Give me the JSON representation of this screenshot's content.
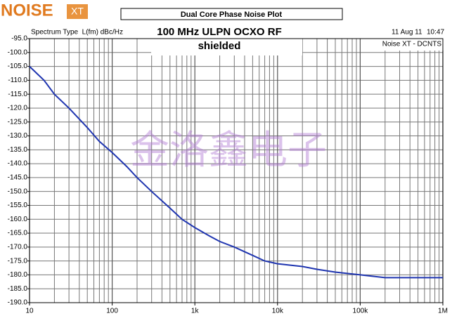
{
  "chart_data": {
    "type": "line",
    "logo": "NOISE",
    "logo_badge": "XT",
    "title": "Dual Core Phase Noise Plot",
    "y_label": "Spectrum Type  L(fm) dBc/Hz",
    "annotation": [
      "100 MHz ULPN OCXO RF",
      "shielded"
    ],
    "date": "11 Aug 11",
    "time": "10:47",
    "instrument": "Noise XT - DCNTS",
    "watermark": "金洛鑫电子",
    "x_scale": "log",
    "grid": true,
    "xlim": [
      10,
      1000000
    ],
    "xticks": [
      10,
      100,
      {
        "value": 1000,
        "label": "1k"
      },
      {
        "value": 10000,
        "label": "10k"
      },
      {
        "value": 100000,
        "label": "100k"
      },
      {
        "value": 1000000,
        "label": "1M"
      }
    ],
    "xminorticks": [
      20,
      30,
      40,
      50,
      60,
      70,
      80,
      90,
      200,
      300,
      400,
      500,
      600,
      700,
      800,
      900,
      2000,
      3000,
      4000,
      5000,
      6000,
      7000,
      8000,
      9000,
      20000,
      30000,
      40000,
      50000,
      60000,
      70000,
      80000,
      90000,
      200000,
      300000,
      400000,
      500000,
      600000,
      700000,
      800000,
      900000
    ],
    "ylim": [
      -190,
      -95
    ],
    "yticks": [
      {
        "value": -95,
        "label": "-95.0"
      },
      {
        "value": -100,
        "label": "-100.0"
      },
      {
        "value": -105,
        "label": "-105.0"
      },
      {
        "value": -110,
        "label": "-110.0"
      },
      {
        "value": -115,
        "label": "-115.0"
      },
      {
        "value": -120,
        "label": "-120.0"
      },
      {
        "value": -125,
        "label": "-125.0"
      },
      {
        "value": -130,
        "label": "-130.0"
      },
      {
        "value": -135,
        "label": "-135.0"
      },
      {
        "value": -140,
        "label": "-140.0"
      },
      {
        "value": -145,
        "label": "-145.0"
      },
      {
        "value": -150,
        "label": "-150.0"
      },
      {
        "value": -155,
        "label": "-155.0"
      },
      {
        "value": -160,
        "label": "-160.0"
      },
      {
        "value": -165,
        "label": "-165.0"
      },
      {
        "value": -170,
        "label": "-170.0"
      },
      {
        "value": -175,
        "label": "-175.0"
      },
      {
        "value": -180,
        "label": "-180.0"
      },
      {
        "value": -185,
        "label": "-185.0"
      },
      {
        "value": -190,
        "label": "-190.0"
      }
    ],
    "color": "#1f35b0",
    "x": [
      10,
      15,
      20,
      30,
      50,
      70,
      100,
      150,
      200,
      300,
      500,
      700,
      1000,
      1500,
      2000,
      3000,
      5000,
      7000,
      10000,
      20000,
      30000,
      50000,
      100000,
      200000,
      300000,
      500000,
      1000000
    ],
    "values": [
      -105,
      -110,
      -115,
      -120,
      -127,
      -132,
      -136,
      -141,
      -145,
      -150,
      -156,
      -160,
      -163,
      -166,
      -168,
      -170,
      -173,
      -175,
      -176,
      -177,
      -178,
      -179,
      -180,
      -181,
      -181,
      -181,
      -181
    ]
  }
}
